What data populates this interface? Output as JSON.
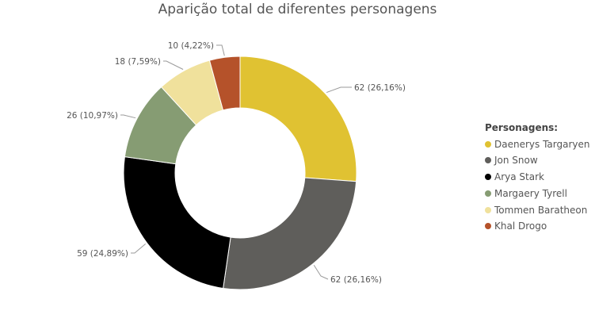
{
  "chart_data": {
    "type": "pie",
    "title": "Aparição total de diferentes personagens",
    "legend_title": "Personagens:",
    "legend_position": "right",
    "donut": true,
    "slices": [
      {
        "name": "Daenerys Targaryen",
        "value": 62,
        "percent": "26,16%",
        "label": "62 (26,16%)",
        "color": "#e0c232"
      },
      {
        "name": "Jon Snow",
        "value": 62,
        "percent": "26,16%",
        "label": "62 (26,16%)",
        "color": "#5f5e5b"
      },
      {
        "name": "Arya Stark",
        "value": 59,
        "percent": "24,89%",
        "label": "59 (24,89%)",
        "color": "#000000"
      },
      {
        "name": "Margaery Tyrell",
        "value": 26,
        "percent": "10,97%",
        "label": "26 (10,97%)",
        "color": "#869c73"
      },
      {
        "name": "Tommen Baratheon",
        "value": 18,
        "percent": "7,59%",
        "label": "18 (7,59%)",
        "color": "#f0e19c"
      },
      {
        "name": "Khal Drogo",
        "value": 10,
        "percent": "4,22%",
        "label": "10 (4,22%)",
        "color": "#b5522a"
      }
    ]
  }
}
